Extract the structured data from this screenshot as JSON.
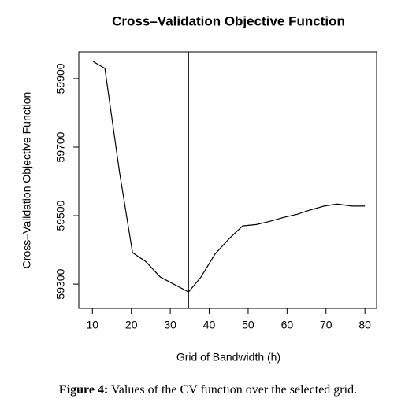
{
  "chart_data": {
    "type": "line",
    "title": "Cross–Validation Objective Function",
    "x_label": "Grid of Bandwidth (h)",
    "y_label": "Cross–Validation Objective Function",
    "x": [
      10.2,
      13.2,
      17,
      20.3,
      23.7,
      27.4,
      34.7,
      37.9,
      41.5,
      45.4,
      48.6,
      52.1,
      55.5,
      59.2,
      62.6,
      65.8,
      69.5,
      72.9,
      76.6,
      80
    ],
    "values": [
      59950,
      59930,
      59624,
      59392,
      59366,
      59321,
      59277,
      59321,
      59388,
      59436,
      59470,
      59474,
      59483,
      59495,
      59504,
      59516,
      59528,
      59534,
      59528,
      59528
    ],
    "color": "#000000",
    "vline": 34.7,
    "xlim": [
      6.5,
      83
    ],
    "ylim": [
      59229,
      59978
    ],
    "xticks": [
      10,
      20,
      30,
      40,
      50,
      60,
      70,
      80
    ],
    "yticks": [
      59300,
      59500,
      59700,
      59900
    ]
  },
  "caption": {
    "label": "Figure 4:",
    "text": "Values of the CV function over the selected grid."
  }
}
